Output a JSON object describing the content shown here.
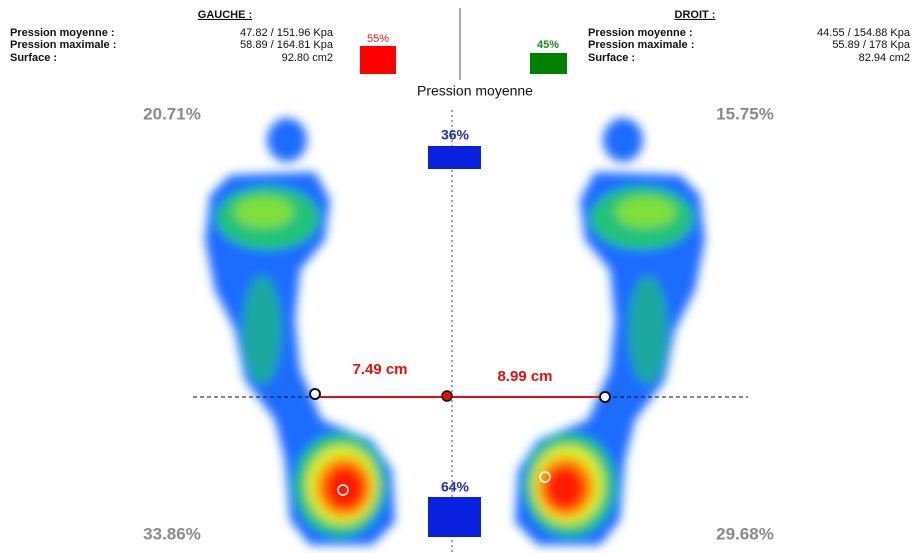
{
  "header": {
    "left": {
      "title": "GAUCHE :",
      "rows": [
        {
          "label": "Pression moyenne :",
          "value": "47.82 / 151.96 Kpa"
        },
        {
          "label": "Pression maximale :",
          "value": "58.89 / 164.81 Kpa"
        },
        {
          "label": "Surface :",
          "value": "92.80 cm2"
        }
      ],
      "share": "55%"
    },
    "right": {
      "title": "DROIT :",
      "rows": [
        {
          "label": "Pression moyenne :",
          "value": "44.55 / 154.88 Kpa"
        },
        {
          "label": "Pression maximale :",
          "value": "55.89 / 178 Kpa"
        },
        {
          "label": "Surface :",
          "value": "82.94 cm2"
        }
      ],
      "share": "45%"
    }
  },
  "view": {
    "title": "Pression moyenne",
    "corners": {
      "top_left": "20.71%",
      "top_right": "15.75%",
      "bottom_left": "33.86%",
      "bottom_right": "29.68%"
    },
    "front": "36%",
    "back": "64%",
    "distances": {
      "left": "7.49 cm",
      "right": "8.99 cm"
    }
  }
}
